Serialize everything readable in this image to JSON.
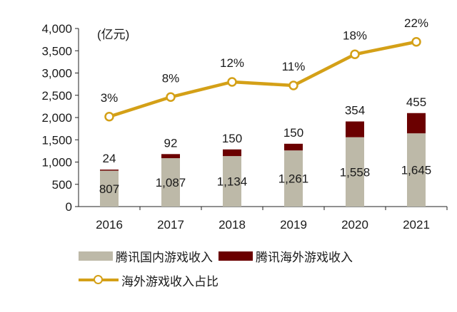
{
  "chart_data": {
    "type": "bar+line",
    "unit_label": "(亿元)",
    "categories": [
      "2016",
      "2017",
      "2018",
      "2019",
      "2020",
      "2021"
    ],
    "y_axis": {
      "min": 0,
      "max": 4000,
      "step": 500,
      "ticks": [
        "0",
        "500",
        "1,000",
        "1,500",
        "2,000",
        "2,500",
        "3,000",
        "3,500",
        "4,000"
      ]
    },
    "series": [
      {
        "name": "腾讯国内游戏收入",
        "type": "stacked-bar",
        "color": "#bdb9a8",
        "values": [
          807,
          1087,
          1134,
          1261,
          1558,
          1645
        ],
        "labels": [
          "807",
          "1,087",
          "1,134",
          "1,261",
          "1,558",
          "1,645"
        ]
      },
      {
        "name": "腾讯海外游戏收入",
        "type": "stacked-bar",
        "color": "#6b0000",
        "values": [
          24,
          92,
          150,
          150,
          354,
          455
        ],
        "labels": [
          "24",
          "92",
          "150",
          "150",
          "354",
          "455"
        ]
      },
      {
        "name": "海外游戏收入占比",
        "type": "line",
        "color": "#d4a017",
        "values": [
          3,
          8,
          12,
          11,
          18,
          22
        ],
        "labels": [
          "3%",
          "8%",
          "12%",
          "11%",
          "18%",
          "22%"
        ],
        "plotted_on_left_axis_at": [
          2020,
          2460,
          2800,
          2720,
          3420,
          3700
        ]
      }
    ],
    "legend_position": "bottom",
    "grid": false
  }
}
